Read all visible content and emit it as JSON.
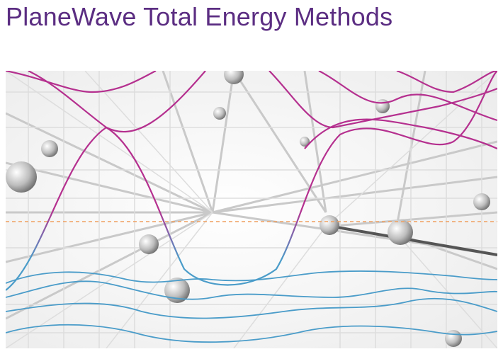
{
  "header": {
    "title": "PlaneWave Total Energy Methods"
  }
}
